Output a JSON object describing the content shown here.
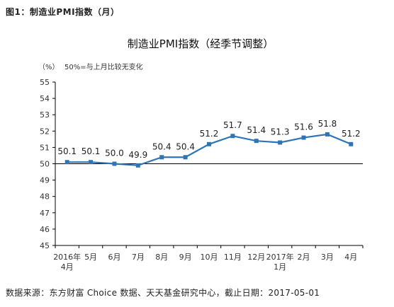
{
  "figure_label": "图1：制造业PMI指数（月）",
  "source": "数据来源：东方财富 Choice 数据、天天基金研究中心，截止日期：2017-05-01",
  "chart_data": {
    "type": "line",
    "title": "制造业PMI指数（经季节调整）",
    "unit_label": "（%）",
    "note": "50%=与上月比较无变化",
    "categories": [
      [
        "2016年",
        "4月"
      ],
      [
        "5月"
      ],
      [
        "6月"
      ],
      [
        "7月"
      ],
      [
        "8月"
      ],
      [
        "9月"
      ],
      [
        "10月"
      ],
      [
        "11月"
      ],
      [
        "12月"
      ],
      [
        "2017年",
        "1月"
      ],
      [
        "2月"
      ],
      [
        "3月"
      ],
      [
        "4月"
      ]
    ],
    "values": [
      50.1,
      50.1,
      50.0,
      49.9,
      50.4,
      50.4,
      51.2,
      51.7,
      51.4,
      51.3,
      51.6,
      51.8,
      51.2
    ],
    "data_labels": [
      "50.1",
      "50.1",
      "50.0",
      "49.9",
      "50.4",
      "50.4",
      "51.2",
      "51.7",
      "51.4",
      "51.3",
      "51.6",
      "51.8",
      "51.2"
    ],
    "ylim": [
      45,
      55
    ],
    "yticks": [
      "45",
      "46",
      "47",
      "48",
      "49",
      "50",
      "51",
      "52",
      "53",
      "54",
      "55"
    ],
    "reference_line": 50,
    "grid": false,
    "colors": {
      "line": "#2E75B6",
      "marker": "#2E75B6",
      "axis": "#000000",
      "ref_line": "#000000"
    }
  }
}
